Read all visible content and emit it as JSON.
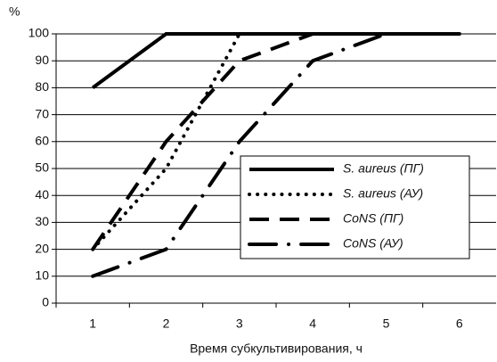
{
  "chart_data": {
    "type": "line",
    "y_label": "%",
    "x_label": "Время субкультивирования, ч",
    "categories": [
      "1",
      "2",
      "3",
      "4",
      "5",
      "6"
    ],
    "series": [
      {
        "name": "S. aureus (ПГ)",
        "color": "#000000",
        "style": "solid",
        "values": [
          80,
          100,
          100,
          100,
          100,
          100
        ]
      },
      {
        "name": "S. aureus (АУ)",
        "color": "#000000",
        "style": "dotted",
        "values": [
          20,
          50,
          100,
          100,
          100,
          100
        ]
      },
      {
        "name": "CoNS (ПГ)",
        "color": "#000000",
        "style": "dashed",
        "values": [
          20,
          60,
          90,
          100,
          100,
          100
        ]
      },
      {
        "name": "CoNS (АУ)",
        "color": "#000000",
        "style": "dashdot",
        "values": [
          10,
          20,
          60,
          90,
          100,
          100
        ]
      }
    ],
    "ylim": [
      0,
      100
    ],
    "yticks": [
      0,
      10,
      20,
      30,
      40,
      50,
      60,
      70,
      80,
      90,
      100
    ],
    "grid": true
  }
}
